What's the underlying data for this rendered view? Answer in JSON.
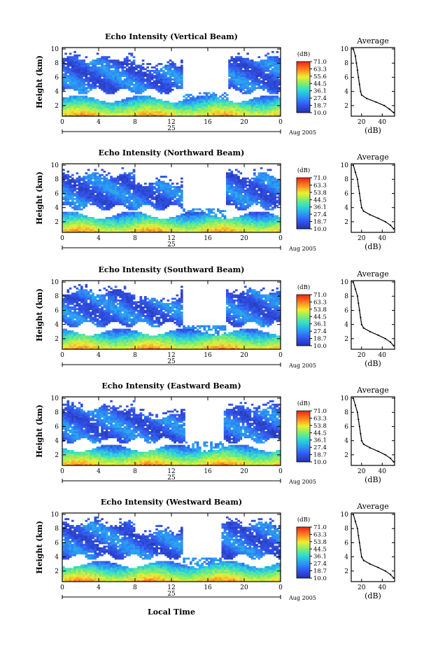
{
  "xlabel": "Local Time",
  "chart_data": [
    {
      "type": "heatmap",
      "title": "Echo Intensity (Vertical Beam)",
      "ylabel": "Height (km)",
      "x_ticks": [
        "0",
        "4",
        "8",
        "12",
        "16",
        "20",
        "0"
      ],
      "y_ticks": [
        "2",
        "4",
        "6",
        "8",
        "10"
      ],
      "xlim": [
        0,
        24
      ],
      "ylim": [
        0.5,
        10.2
      ],
      "day_label": "25",
      "date_label": "Aug 2005",
      "colorbar": {
        "unit": "(dB)",
        "levels": [
          "71.0",
          "63.3",
          "55.6",
          "44.5",
          "36.1",
          "27.4",
          "18.7",
          "10.0"
        ]
      },
      "gap_hours": [
        13.2,
        18.3
      ],
      "average_profile": {
        "title": "Average",
        "xlabel": "(dB)",
        "x_ticks": [
          "20",
          "40"
        ],
        "xlim": [
          10,
          52
        ],
        "points": [
          [
            12,
            10
          ],
          [
            14,
            9
          ],
          [
            15,
            8
          ],
          [
            16,
            7
          ],
          [
            17,
            6
          ],
          [
            18,
            5
          ],
          [
            19,
            4
          ],
          [
            20,
            3.5
          ],
          [
            25,
            3
          ],
          [
            34,
            2.5
          ],
          [
            42,
            2
          ],
          [
            47,
            1.5
          ],
          [
            51,
            1
          ]
        ]
      }
    },
    {
      "type": "heatmap",
      "title": "Echo Intensity (Northward Beam)",
      "ylabel": "Height (km)",
      "x_ticks": [
        "0",
        "4",
        "8",
        "12",
        "16",
        "20",
        "0"
      ],
      "y_ticks": [
        "2",
        "4",
        "6",
        "8",
        "10"
      ],
      "xlim": [
        0,
        24
      ],
      "ylim": [
        0.5,
        10.2
      ],
      "day_label": "25",
      "date_label": "Aug 2005",
      "colorbar": {
        "unit": "(dB)",
        "levels": [
          "71.0",
          "63.3",
          "53.8",
          "44.5",
          "36.1",
          "27.4",
          "18.7",
          "10.0"
        ]
      },
      "gap_hours": [
        13.3,
        18.0
      ],
      "average_profile": {
        "title": "Average",
        "xlabel": "(dB)",
        "x_ticks": [
          "20",
          "40"
        ],
        "xlim": [
          10,
          52
        ],
        "points": [
          [
            12,
            10
          ],
          [
            14,
            9
          ],
          [
            16,
            8
          ],
          [
            17,
            7
          ],
          [
            18,
            6
          ],
          [
            19,
            5
          ],
          [
            20,
            4
          ],
          [
            22,
            3.5
          ],
          [
            28,
            3
          ],
          [
            36,
            2.5
          ],
          [
            43,
            2
          ],
          [
            48,
            1.5
          ],
          [
            51,
            1
          ]
        ]
      }
    },
    {
      "type": "heatmap",
      "title": "Echo Intensity (Southward Beam)",
      "ylabel": "Height (km)",
      "x_ticks": [
        "0",
        "4",
        "8",
        "12",
        "16",
        "20",
        "0"
      ],
      "y_ticks": [
        "2",
        "4",
        "6",
        "8",
        "10"
      ],
      "xlim": [
        0,
        24
      ],
      "ylim": [
        0.5,
        10.2
      ],
      "day_label": "25",
      "date_label": "Aug 2005",
      "colorbar": {
        "unit": "(dB)",
        "levels": [
          "71.0",
          "63.3",
          "53.8",
          "44.5",
          "36.1",
          "27.4",
          "18.7",
          "10.0"
        ]
      },
      "gap_hours": [
        13.3,
        18.0
      ],
      "average_profile": {
        "title": "Average",
        "xlabel": "(dB)",
        "x_ticks": [
          "20",
          "40"
        ],
        "xlim": [
          10,
          52
        ],
        "points": [
          [
            12,
            10
          ],
          [
            14,
            9
          ],
          [
            16,
            8
          ],
          [
            17,
            7
          ],
          [
            18,
            6
          ],
          [
            19,
            5
          ],
          [
            20,
            4
          ],
          [
            22,
            3.5
          ],
          [
            28,
            3
          ],
          [
            36,
            2.5
          ],
          [
            43,
            2
          ],
          [
            48,
            1.5
          ],
          [
            51,
            1
          ]
        ]
      }
    },
    {
      "type": "heatmap",
      "title": "Echo Intensity (Eastward Beam)",
      "ylabel": "Height (km)",
      "x_ticks": [
        "0",
        "4",
        "8",
        "12",
        "16",
        "20",
        "0"
      ],
      "y_ticks": [
        "2",
        "4",
        "6",
        "8",
        "10"
      ],
      "xlim": [
        0,
        24
      ],
      "ylim": [
        0.5,
        10.2
      ],
      "day_label": "25",
      "date_label": "Aug 2005",
      "colorbar": {
        "unit": "(dB)",
        "levels": [
          "71.0",
          "63.3",
          "53.8",
          "44.5",
          "36.1",
          "27.4",
          "18.7",
          "10.0"
        ]
      },
      "gap_hours": [
        13.6,
        17.8
      ],
      "average_profile": {
        "title": "Average",
        "xlabel": "(dB)",
        "x_ticks": [
          "20",
          "40"
        ],
        "xlim": [
          10,
          52
        ],
        "points": [
          [
            12,
            10
          ],
          [
            14,
            9
          ],
          [
            16,
            8
          ],
          [
            17,
            7
          ],
          [
            18,
            6
          ],
          [
            19,
            5
          ],
          [
            20,
            4
          ],
          [
            22,
            3.5
          ],
          [
            28,
            3
          ],
          [
            36,
            2.5
          ],
          [
            43,
            2
          ],
          [
            48,
            1.5
          ],
          [
            51,
            1
          ]
        ]
      }
    },
    {
      "type": "heatmap",
      "title": "Echo Intensity (Westward Beam)",
      "ylabel": "Height (km)",
      "x_ticks": [
        "0",
        "4",
        "8",
        "12",
        "16",
        "20",
        "0"
      ],
      "y_ticks": [
        "2",
        "4",
        "6",
        "8",
        "10"
      ],
      "xlim": [
        0,
        24
      ],
      "ylim": [
        0.5,
        10.2
      ],
      "day_label": "25",
      "date_label": "Aug 2005",
      "colorbar": {
        "unit": "(dB)",
        "levels": [
          "71.0",
          "63.3",
          "53.8",
          "44.5",
          "36.1",
          "27.4",
          "18.7",
          "10.0"
        ]
      },
      "gap_hours": [
        13.3,
        17.6
      ],
      "average_profile": {
        "title": "Average",
        "xlabel": "(dB)",
        "x_ticks": [
          "20",
          "40"
        ],
        "xlim": [
          10,
          52
        ],
        "points": [
          [
            12,
            10
          ],
          [
            14,
            9
          ],
          [
            16,
            8
          ],
          [
            17,
            7
          ],
          [
            18,
            6
          ],
          [
            19,
            5
          ],
          [
            20,
            4
          ],
          [
            22,
            3.5
          ],
          [
            28,
            3
          ],
          [
            36,
            2.5
          ],
          [
            43,
            2
          ],
          [
            48,
            1.5
          ],
          [
            51,
            1
          ]
        ]
      }
    }
  ]
}
